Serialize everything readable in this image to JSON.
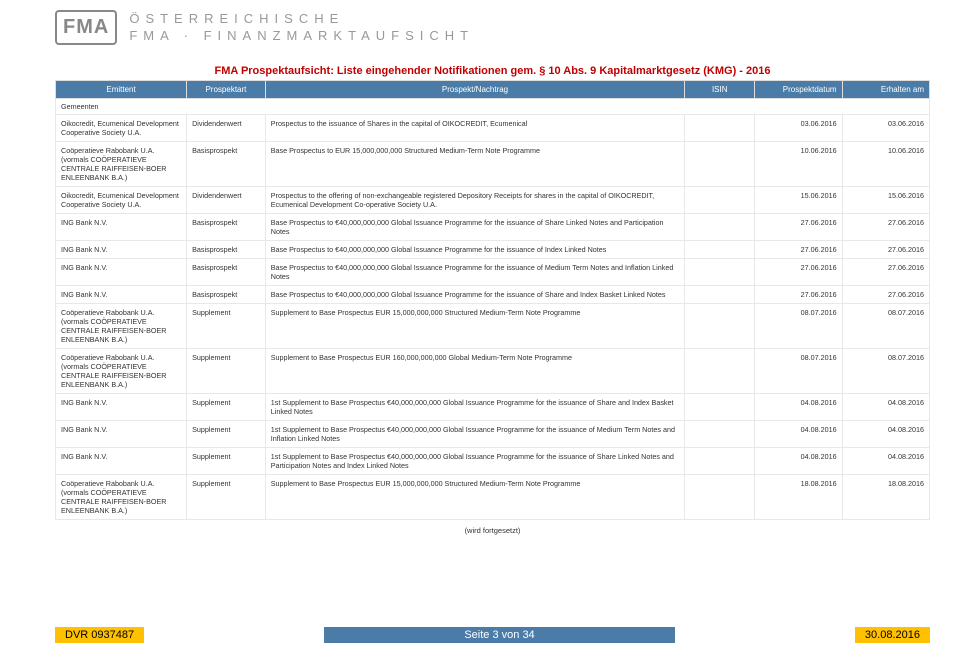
{
  "logo": {
    "mark": "FMA",
    "line1": "ÖSTERREICHISCHE",
    "line2": "FMA · FINANZMARKTAUFSICHT"
  },
  "title": "FMA Prospektaufsicht: Liste eingehender Notifikationen gem. § 10 Abs. 9 Kapitalmarktgesetz (KMG) - 2016",
  "columns": {
    "emittent": "Emittent",
    "prospektart": "Prospektart",
    "nachtrag": "Prospekt/Nachtrag",
    "isin": "ISIN",
    "datum": "Prospektdatum",
    "erhalten": "Erhalten am"
  },
  "group": "Gemeenten",
  "rows": [
    {
      "emittent": "Oikocredit, Ecumenical Development Cooperative Society U.A.",
      "art": "Dividendenwert",
      "nachtrag": "Prospectus to the issuance of Shares in the capital of OIKOCREDIT, Ecumenical",
      "isin": "",
      "d1": "03.06.2016",
      "d2": "03.06.2016"
    },
    {
      "emittent": "Coöperatieve Rabobank U.A. (vormals COÖPERATIEVE CENTRALE RAIFFEISEN-BOER ENLEENBANK B.A.)",
      "art": "Basisprospekt",
      "nachtrag": "Base Prospectus to EUR 15,000,000,000 Structured Medium-Term Note Programme",
      "isin": "",
      "d1": "10.06.2016",
      "d2": "10.06.2016"
    },
    {
      "emittent": "Oikocredit, Ecumenical Development Cooperative Society U.A.",
      "art": "Dividendenwert",
      "nachtrag": "Prospectus to the offering of non-exchangeable registered Depository Receipts for shares in the capital of OIKOCREDIT, Ecumenical Development Co-operative Society U.A.",
      "isin": "",
      "d1": "15.06.2016",
      "d2": "15.06.2016"
    },
    {
      "emittent": "ING Bank N.V.",
      "art": "Basisprospekt",
      "nachtrag": "Base Prospectus to €40,000,000,000 Global Issuance Programme for the issuance of Share Linked Notes and Participation Notes",
      "isin": "",
      "d1": "27.06.2016",
      "d2": "27.06.2016"
    },
    {
      "emittent": "ING Bank N.V.",
      "art": "Basisprospekt",
      "nachtrag": "Base Prospectus to €40,000,000,000 Global Issuance Programme for the issuance of Index Linked Notes",
      "isin": "",
      "d1": "27.06.2016",
      "d2": "27.06.2016"
    },
    {
      "emittent": "ING Bank N.V.",
      "art": "Basisprospekt",
      "nachtrag": "Base Prospectus to €40,000,000,000 Global Issuance Programme for the issuance of Medium Term Notes and Inflation Linked Notes",
      "isin": "",
      "d1": "27.06.2016",
      "d2": "27.06.2016"
    },
    {
      "emittent": "ING Bank N.V.",
      "art": "Basisprospekt",
      "nachtrag": "Base Prospectus to €40,000,000,000 Global Issuance Programme for the issuance of Share and Index Basket Linked Notes",
      "isin": "",
      "d1": "27.06.2016",
      "d2": "27.06.2016"
    },
    {
      "emittent": "Coöperatieve Rabobank U.A. (vormals COÖPERATIEVE CENTRALE RAIFFEISEN-BOER ENLEENBANK B.A.)",
      "art": "Supplement",
      "nachtrag": "Supplement to Base Prospectus EUR 15,000,000,000 Structured Medium-Term Note Programme",
      "isin": "",
      "d1": "08.07.2016",
      "d2": "08.07.2016"
    },
    {
      "emittent": "Coöperatieve Rabobank U.A. (vormals COÖPERATIEVE CENTRALE RAIFFEISEN-BOER ENLEENBANK B.A.)",
      "art": "Supplement",
      "nachtrag": "Supplement to Base Prospectus EUR 160,000,000,000 Global Medium-Term Note Programme",
      "isin": "",
      "d1": "08.07.2016",
      "d2": "08.07.2016"
    },
    {
      "emittent": "ING Bank N.V.",
      "art": "Supplement",
      "nachtrag": "1st Supplement to Base Prospectus €40,000,000,000 Global Issuance Programme for the issuance of Share and Index Basket Linked Notes",
      "isin": "",
      "d1": "04.08.2016",
      "d2": "04.08.2016"
    },
    {
      "emittent": "ING Bank N.V.",
      "art": "Supplement",
      "nachtrag": "1st Supplement to Base Prospectus €40,000,000,000 Global Issuance Programme for the issuance of Medium Term Notes and Inflation Linked Notes",
      "isin": "",
      "d1": "04.08.2016",
      "d2": "04.08.2016"
    },
    {
      "emittent": "ING Bank N.V.",
      "art": "Supplement",
      "nachtrag": "1st Supplement to Base Prospectus €40,000,000,000 Global Issuance Programme for the issuance of Share Linked Notes and Participation Notes and Index Linked Notes",
      "isin": "",
      "d1": "04.08.2016",
      "d2": "04.08.2016"
    },
    {
      "emittent": "Coöperatieve Rabobank U.A. (vormals COÖPERATIEVE CENTRALE RAIFFEISEN-BOER ENLEENBANK B.A.)",
      "art": "Supplement",
      "nachtrag": "Supplement to Base Prospectus EUR 15,000,000,000 Structured Medium-Term Note Programme",
      "isin": "",
      "d1": "18.08.2016",
      "d2": "18.08.2016"
    }
  ],
  "continued": "(wird fortgesetzt)",
  "footer": {
    "dvr": "DVR 0937487",
    "page": "Seite 3 von 34",
    "date": "30.08.2016"
  },
  "style": {
    "header_bg": "#4b7ca8",
    "title_color": "#c00000",
    "footer_yellow": "#ffc000",
    "border_color": "#e8e8e8"
  }
}
